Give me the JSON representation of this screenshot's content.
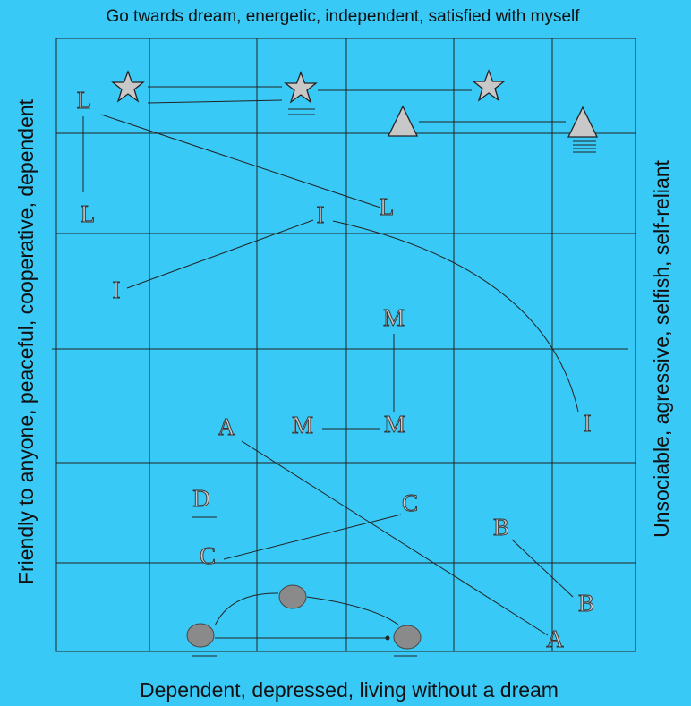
{
  "title_top": "Go twards dream, energetic, independent, satisfied with myself",
  "title_bottom": "Dependent, depressed, living without a dream",
  "label_left": "Friendly to anyone, peaceful, cooperative, dependent",
  "label_right": "Unsociable, agressive, selfish, self-reliant",
  "letters": [
    "L",
    "L",
    "L",
    "I",
    "I",
    "I",
    "M",
    "M",
    "M",
    "A",
    "A",
    "D",
    "C",
    "C",
    "B",
    "B"
  ]
}
